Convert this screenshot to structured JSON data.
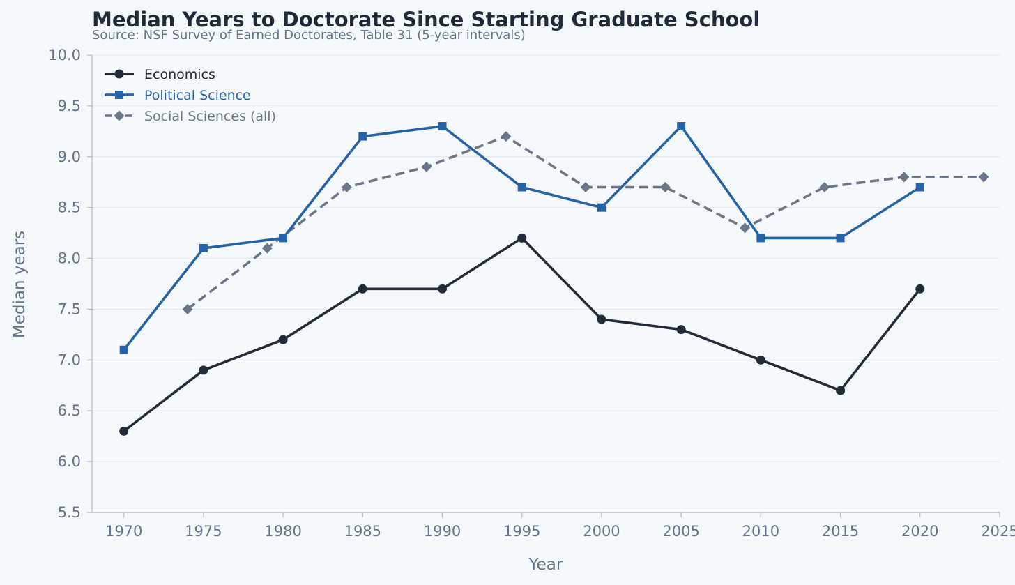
{
  "chart_data": {
    "type": "line",
    "title": "Median Years to Doctorate Since Starting Graduate School",
    "subtitle": "Source: NSF Survey of Earned Doctorates, Table 31 (5-year intervals)",
    "xlabel": "Year",
    "ylabel": "Median years",
    "xlim": [
      1968,
      2025
    ],
    "ylim": [
      5.5,
      10.0
    ],
    "xticks": [
      1970,
      1975,
      1980,
      1985,
      1990,
      1995,
      2000,
      2005,
      2010,
      2015,
      2020,
      2025
    ],
    "yticks": [
      "5.5",
      "6.0",
      "6.5",
      "7.0",
      "7.5",
      "8.0",
      "8.5",
      "9.0",
      "9.5",
      "10.0"
    ],
    "grid": "horizontal",
    "legend_position": "top-left",
    "series": [
      {
        "name": "Economics",
        "marker": "circle",
        "line_style": "solid",
        "color": "#222b38",
        "x": [
          1970,
          1975,
          1980,
          1985,
          1990,
          1995,
          2000,
          2005,
          2010,
          2015,
          2020
        ],
        "y": [
          6.3,
          6.9,
          7.2,
          7.7,
          7.7,
          8.2,
          7.4,
          7.3,
          7.0,
          6.7,
          7.7
        ]
      },
      {
        "name": "Political Science",
        "marker": "square",
        "line_style": "solid",
        "color": "#2563a6",
        "x": [
          1970,
          1975,
          1980,
          1985,
          1990,
          1995,
          2000,
          2005,
          2010,
          2015,
          2020
        ],
        "y": [
          7.1,
          8.1,
          8.2,
          9.2,
          9.3,
          8.7,
          8.5,
          9.3,
          8.2,
          8.2,
          8.7
        ]
      },
      {
        "name": "Social Sciences (all)",
        "marker": "diamond",
        "line_style": "dashed",
        "color": "#6b7688",
        "x": [
          1974,
          1979,
          1984,
          1989,
          1994,
          1999,
          2004,
          2009,
          2014,
          2019,
          2024
        ],
        "y": [
          7.5,
          8.1,
          8.7,
          8.9,
          9.2,
          8.7,
          8.7,
          8.3,
          8.7,
          8.8,
          8.8
        ]
      }
    ]
  },
  "colors": {
    "background": "#f5f9fc",
    "grid": "#e3e8ee",
    "axis": "#b4bcc6",
    "tick_text": "#64748b",
    "title_text": "#1f2937"
  }
}
